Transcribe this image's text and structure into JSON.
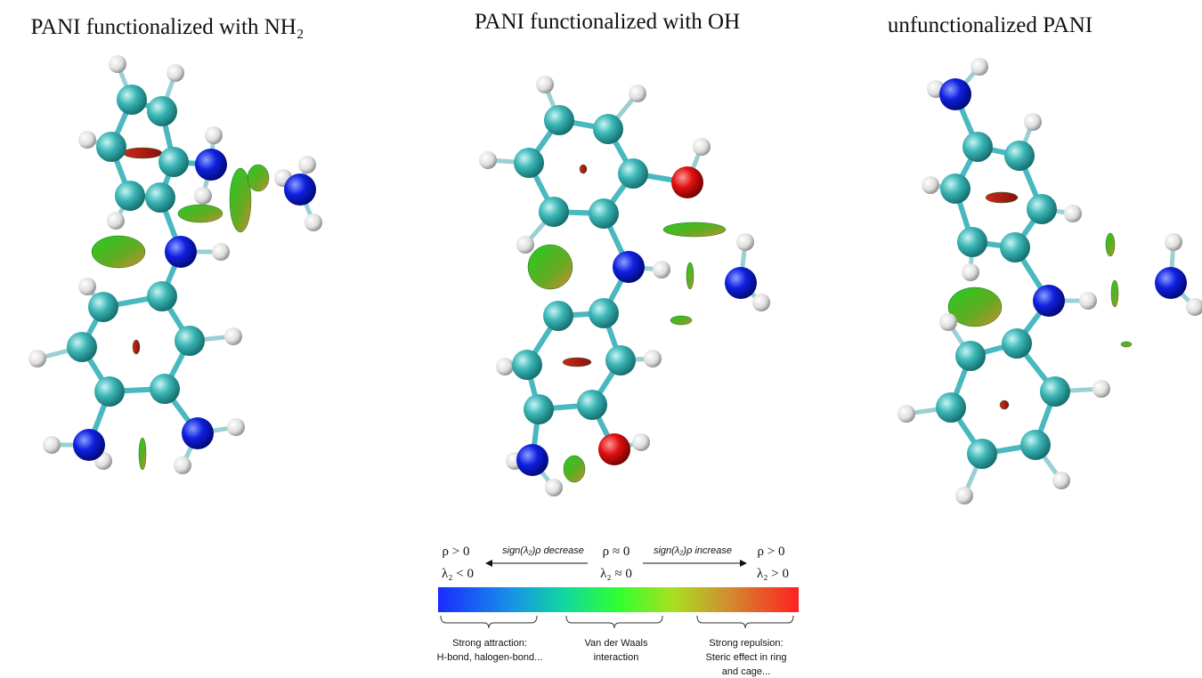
{
  "panels": [
    {
      "title": "PANI functionalized with NH₂"
    },
    {
      "title": "PANI functionalized with OH"
    },
    {
      "title": "unfunctionalized PANI"
    }
  ],
  "legend": {
    "left_rho": "ρ > 0",
    "left_lambda": "λ₂ < 0",
    "decrease": "sign(λ₂)ρ decrease",
    "mid_rho": "ρ ≈ 0",
    "mid_lambda": "λ₂ ≈ 0",
    "increase": "sign(λ₂)ρ increase",
    "right_rho": "ρ > 0",
    "right_lambda": "λ₂ > 0",
    "attraction": [
      "Strong attraction:",
      "H-bond, halogen-bond..."
    ],
    "vdw": [
      "Van der Waals",
      "interaction"
    ],
    "repulsion": [
      "Strong repulsion:",
      "Steric effect in ring",
      "and cage..."
    ]
  }
}
